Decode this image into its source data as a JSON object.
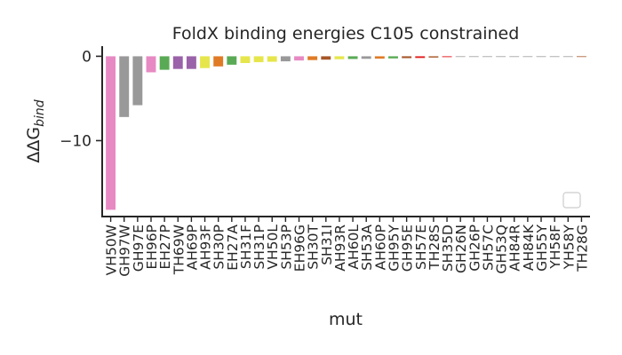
{
  "chart_data": {
    "type": "bar",
    "title": "FoldX binding energies C105 constrained",
    "xlabel": "mut",
    "ylabel_main": "ΔΔG",
    "ylabel_sub": "bind",
    "ylim": [
      -19,
      1.2
    ],
    "yticks": [
      0,
      -10
    ],
    "ytick_labels": [
      "0",
      "−10"
    ],
    "legend": {
      "placement": "bottom-right",
      "entries": []
    },
    "grid": false,
    "categories": [
      "VH50W",
      "GH97W",
      "GH97E",
      "EH96P",
      "EH27P",
      "TH69W",
      "AH69P",
      "AH93F",
      "SH30P",
      "EH27A",
      "SH31F",
      "SH31P",
      "VH50L",
      "SH53P",
      "EH96G",
      "SH30T",
      "SH31I",
      "AH93R",
      "AH60L",
      "SH53A",
      "AH60P",
      "GH95Y",
      "GH95E",
      "SH57E",
      "TH28S",
      "SH35D",
      "GH26N",
      "GH26P",
      "SH57C",
      "GH53Q",
      "AH84R",
      "AH84K",
      "GH55Y",
      "YH58F",
      "YH58Y",
      "TH28G"
    ],
    "values": [
      -18.2,
      -7.2,
      -5.8,
      -1.9,
      -1.6,
      -1.5,
      -1.5,
      -1.4,
      -1.2,
      -1.0,
      -0.8,
      -0.7,
      -0.65,
      -0.6,
      -0.5,
      -0.45,
      -0.4,
      -0.35,
      -0.32,
      -0.3,
      -0.28,
      -0.25,
      -0.22,
      -0.2,
      -0.15,
      -0.1,
      0,
      0,
      0,
      0,
      0,
      0,
      0,
      0,
      0,
      -0.05
    ],
    "colors": [
      "#e78ac3",
      "#999999",
      "#999999",
      "#e78ac3",
      "#5aaa55",
      "#9a62a9",
      "#9a62a9",
      "#e6e64c",
      "#e07b25",
      "#5aaa55",
      "#e6e64c",
      "#e6e64c",
      "#e6e64c",
      "#999999",
      "#e78ac3",
      "#e07b25",
      "#a65628",
      "#e6e64c",
      "#5aaa55",
      "#999999",
      "#e07b25",
      "#5aaa55",
      "#a65628",
      "#e41a1c",
      "#a65628",
      "#e41a1c",
      "#999999",
      "#999999",
      "#999999",
      "#999999",
      "#999999",
      "#999999",
      "#999999",
      "#999999",
      "#999999",
      "#a65628"
    ]
  }
}
